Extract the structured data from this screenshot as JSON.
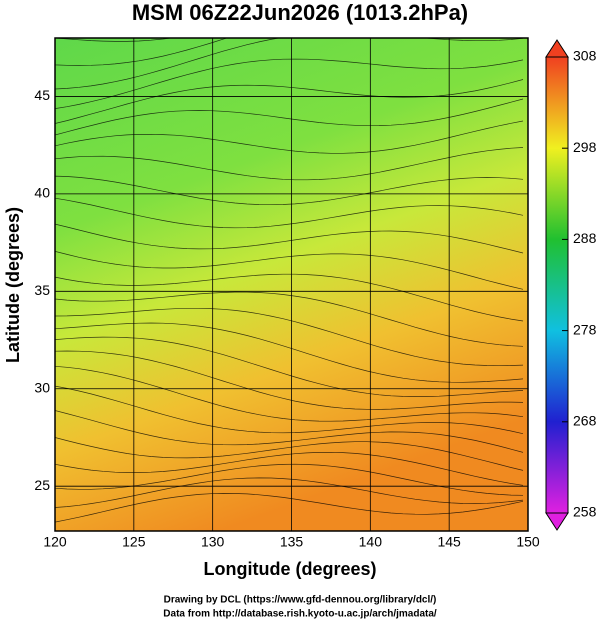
{
  "title": "MSM 06Z22Jun2026 (1013.2hPa)",
  "map": {
    "xlabel": "Longitude (degrees)",
    "ylabel": "Latitude  (degrees)",
    "xlim": [
      120,
      150
    ],
    "ylim": [
      22.7,
      48.0
    ],
    "xticks": [
      120,
      125,
      130,
      135,
      140,
      145,
      150
    ],
    "yticks": [
      25,
      30,
      35,
      40,
      45
    ],
    "grid": true
  },
  "colorbar": {
    "lim": [
      258,
      308
    ],
    "ticks": [
      258,
      268,
      278,
      288,
      298,
      308
    ]
  },
  "footer": [
    "Drawing by DCL (https://www.gfd-dennou.org/library/dcl/)",
    "Data from http://database.rish.kyoto-u.ac.jp/arch/jmadata/"
  ]
}
